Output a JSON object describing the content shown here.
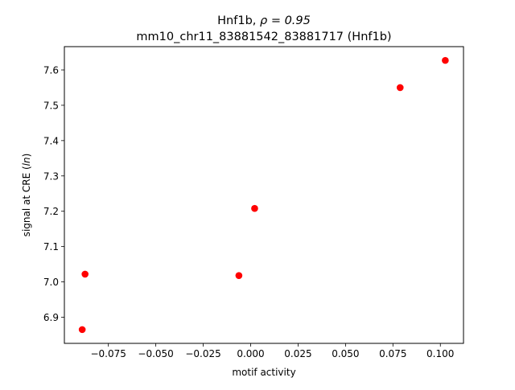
{
  "chart_data": {
    "type": "scatter",
    "title_line1_prefix": "Hnf1b, ",
    "title_line1_math": "ρ = 0.95",
    "title_line2": "mm10_chr11_83881542_83881717 (Hnf1b)",
    "xlabel": "motif activity",
    "ylabel_prefix": "signal at CRE (",
    "ylabel_math": "ln",
    "ylabel_suffix": ")",
    "xlim": [
      -0.0982,
      0.1122
    ],
    "ylim": [
      6.826,
      7.666
    ],
    "x_ticks": [
      -0.075,
      -0.05,
      -0.025,
      0.0,
      0.025,
      0.05,
      0.075,
      0.1
    ],
    "x_tick_labels": [
      "−0.075",
      "−0.050",
      "−0.025",
      "0.000",
      "0.025",
      "0.050",
      "0.075",
      "0.100"
    ],
    "y_ticks": [
      6.9,
      7.0,
      7.1,
      7.2,
      7.3,
      7.4,
      7.5,
      7.6
    ],
    "y_tick_labels": [
      "6.9",
      "7.0",
      "7.1",
      "7.2",
      "7.3",
      "7.4",
      "7.5",
      "7.6"
    ],
    "marker_color": "#ff0000",
    "points": [
      {
        "x": -0.0888,
        "y": 6.865
      },
      {
        "x": -0.0873,
        "y": 7.022
      },
      {
        "x": -0.0062,
        "y": 7.018
      },
      {
        "x": 0.0021,
        "y": 7.208
      },
      {
        "x": 0.0788,
        "y": 7.55
      },
      {
        "x": 0.1026,
        "y": 7.627
      }
    ]
  }
}
